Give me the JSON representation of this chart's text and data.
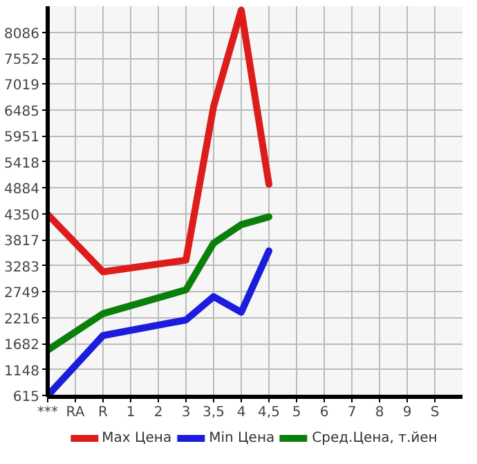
{
  "chart_data": {
    "type": "line",
    "categories": [
      "***",
      "RA",
      "R",
      "1",
      "2",
      "3",
      "3,5",
      "4",
      "4,5",
      "5",
      "6",
      "7",
      "8",
      "9",
      "S"
    ],
    "ylim": [
      590,
      8620
    ],
    "yticks": [
      615,
      1148,
      1682,
      2216,
      2749,
      3283,
      3817,
      4350,
      4884,
      5418,
      5951,
      6485,
      7019,
      7552,
      8086
    ],
    "grid": true,
    "legend": "bottom",
    "line_style": "solid",
    "marker": "none",
    "series": [
      {
        "name": "Max Цена",
        "color": "#dd1c1c",
        "values": [
          4340,
          null,
          3160,
          null,
          null,
          3400,
          6560,
          8540,
          4960,
          null,
          null,
          null,
          null,
          null,
          null
        ]
      },
      {
        "name": "Min Цена",
        "color": "#1c1cdd",
        "values": [
          615,
          null,
          1850,
          null,
          null,
          2170,
          2650,
          2330,
          3590,
          null,
          null,
          null,
          null,
          null,
          null
        ]
      },
      {
        "name": "Сред.Цена, т.йен",
        "color": "#0a800a",
        "values": [
          1550,
          null,
          2300,
          null,
          null,
          2790,
          3750,
          4130,
          4290,
          null,
          null,
          null,
          null,
          null,
          null
        ]
      }
    ]
  }
}
